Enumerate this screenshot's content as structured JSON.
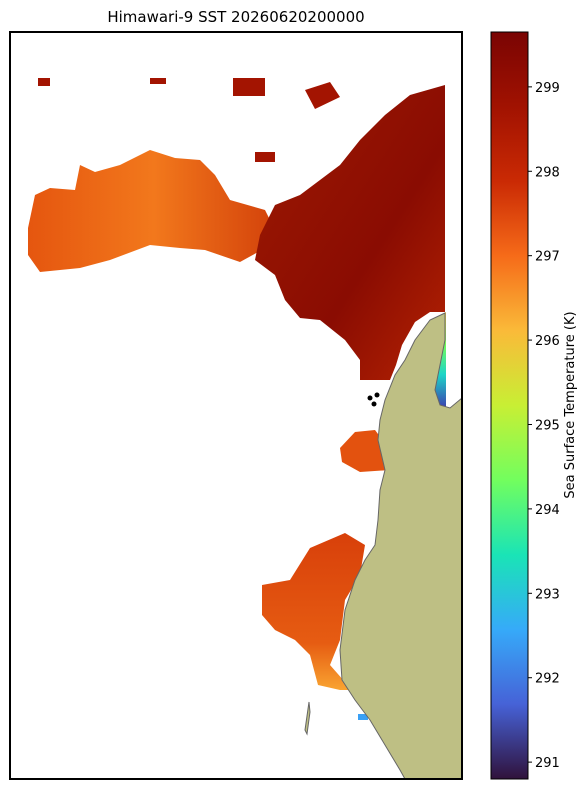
{
  "chart_data": {
    "type": "map",
    "title": "Himawari-9 SST 20260620200000",
    "colorbar_label": "Sea Surface Temperature (K)",
    "clim": [
      290.8,
      299.65
    ],
    "cticks": [
      291,
      292,
      293,
      294,
      295,
      296,
      297,
      298,
      299
    ]
  }
}
